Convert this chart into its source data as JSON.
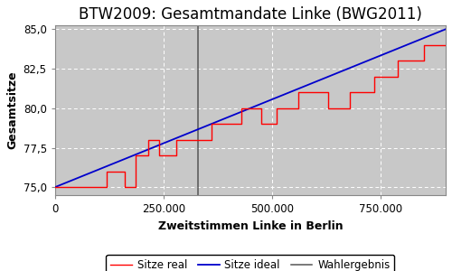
{
  "title": "BTW2009: Gesamtmandate Linke (BWG2011)",
  "xlabel": "Zweitstimmen Linke in Berlin",
  "ylabel": "Gesamtsitze",
  "bg_color": "#c8c8c8",
  "ylim": [
    74.5,
    85.25
  ],
  "xlim": [
    0,
    900000
  ],
  "yticks": [
    75.0,
    77.5,
    80.0,
    82.5,
    85.0
  ],
  "ytick_labels": [
    "75,0",
    "77,5",
    "80,0",
    "82,5",
    "85,0"
  ],
  "xticks": [
    0,
    250000,
    500000,
    750000
  ],
  "xtick_labels": [
    "0",
    "250.000",
    "500.000",
    "750.000"
  ],
  "wahlergebnis_x": 330000,
  "ideal_start_x": 0,
  "ideal_start_y": 75.0,
  "ideal_end_x": 900000,
  "ideal_end_y": 85.0,
  "real_steps": [
    [
      0,
      75
    ],
    [
      105000,
      75
    ],
    [
      120000,
      76
    ],
    [
      155000,
      76
    ],
    [
      160000,
      75
    ],
    [
      175000,
      75
    ],
    [
      185000,
      77
    ],
    [
      205000,
      77
    ],
    [
      215000,
      78
    ],
    [
      235000,
      78
    ],
    [
      240000,
      77
    ],
    [
      265000,
      77
    ],
    [
      280000,
      78
    ],
    [
      340000,
      78
    ],
    [
      360000,
      79
    ],
    [
      415000,
      79
    ],
    [
      430000,
      80
    ],
    [
      460000,
      80
    ],
    [
      475000,
      79
    ],
    [
      490000,
      79
    ],
    [
      510000,
      80
    ],
    [
      545000,
      80
    ],
    [
      560000,
      81
    ],
    [
      610000,
      81
    ],
    [
      630000,
      80
    ],
    [
      660000,
      80
    ],
    [
      680000,
      81
    ],
    [
      720000,
      81
    ],
    [
      735000,
      82
    ],
    [
      775000,
      82
    ],
    [
      790000,
      83
    ],
    [
      835000,
      83
    ],
    [
      850000,
      84
    ],
    [
      900000,
      84
    ]
  ],
  "line_real_color": "#ff0000",
  "line_ideal_color": "#0000cc",
  "line_wahlergebnis_color": "#555555",
  "grid_color": "#ffffff",
  "title_fontsize": 12,
  "label_fontsize": 9,
  "tick_fontsize": 8.5,
  "legend_fontsize": 8.5
}
